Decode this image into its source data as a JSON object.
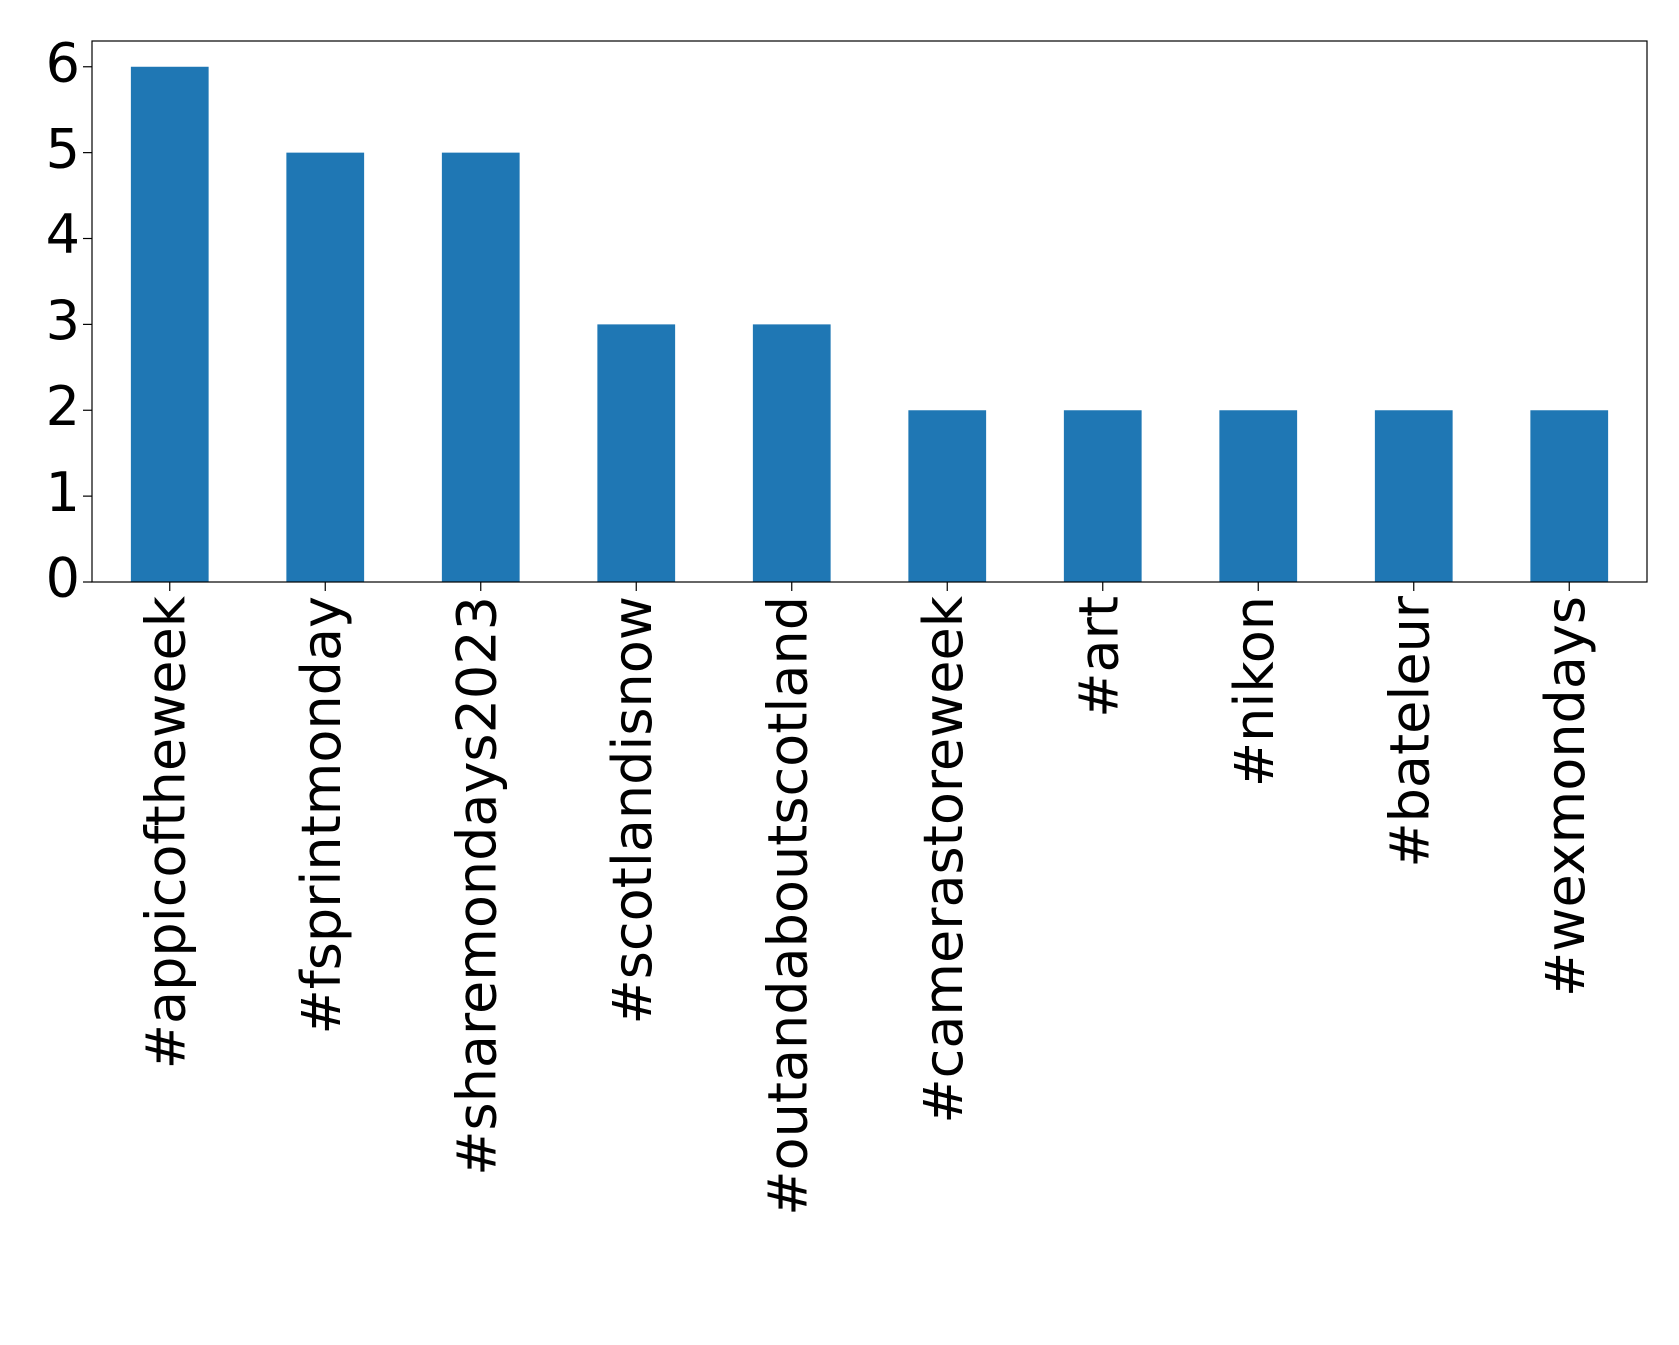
{
  "chart_data": {
    "type": "bar",
    "categories": [
      "#appicoftheweek",
      "#fsprintmonday",
      "#sharemondays2023",
      "#scotlandisnow",
      "#outandaboutscotland",
      "#camerastoreweek",
      "#art",
      "#nikon",
      "#bateleur",
      "#wexmondays"
    ],
    "values": [
      6,
      5,
      5,
      3,
      3,
      2,
      2,
      2,
      2,
      2
    ],
    "color": "#1f77b4",
    "ylim": [
      0,
      6.3
    ],
    "yticks": [
      0,
      1,
      2,
      3,
      4,
      5,
      6
    ],
    "grid": false
  }
}
